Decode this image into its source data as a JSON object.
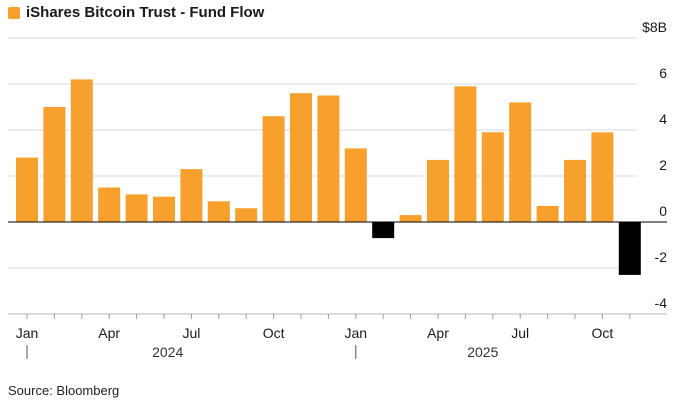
{
  "legend": {
    "label": "iShares Bitcoin Trust - Fund Flow",
    "color": "#F7A02E"
  },
  "source": "Source: Bloomberg",
  "chart_data": {
    "type": "bar",
    "title": "iShares Bitcoin Trust - Fund Flow",
    "ylabel": "$8B",
    "ylim": [
      -4,
      8
    ],
    "yticks": [
      {
        "value": 8,
        "label": "$8B"
      },
      {
        "value": 6,
        "label": "6"
      },
      {
        "value": 4,
        "label": "4"
      },
      {
        "value": 2,
        "label": "2"
      },
      {
        "value": 0,
        "label": "0"
      },
      {
        "value": -2,
        "label": "-2"
      },
      {
        "value": -4,
        "label": "-4"
      }
    ],
    "categories": [
      "Jan 2024",
      "Feb 2024",
      "Mar 2024",
      "Apr 2024",
      "May 2024",
      "Jun 2024",
      "Jul 2024",
      "Aug 2024",
      "Sep 2024",
      "Oct 2024",
      "Nov 2024",
      "Dec 2024",
      "Jan 2025",
      "Feb 2025",
      "Mar 2025",
      "Apr 2025",
      "May 2025",
      "Jun 2025",
      "Jul 2025",
      "Aug 2025",
      "Sep 2025",
      "Oct 2025",
      "Nov 2025"
    ],
    "values": [
      2.8,
      5.0,
      6.2,
      1.5,
      1.2,
      1.1,
      2.3,
      0.9,
      0.6,
      4.6,
      5.6,
      5.5,
      3.2,
      -0.7,
      0.3,
      2.7,
      5.9,
      3.9,
      5.2,
      0.7,
      2.7,
      3.9,
      -2.3
    ],
    "bar_colors": {
      "positive": "#F7A02E",
      "negative": "#000000"
    },
    "xtick_labels": [
      {
        "index": 0,
        "label": "Jan"
      },
      {
        "index": 3,
        "label": "Apr"
      },
      {
        "index": 6,
        "label": "Jul"
      },
      {
        "index": 9,
        "label": "Oct"
      },
      {
        "index": 12,
        "label": "Jan"
      },
      {
        "index": 15,
        "label": "Apr"
      },
      {
        "index": 18,
        "label": "Jul"
      },
      {
        "index": 21,
        "label": "Oct"
      }
    ],
    "year_labels": [
      {
        "start_index": 0,
        "label": "2024"
      },
      {
        "start_index": 12,
        "label": "2025"
      }
    ],
    "grid": true
  }
}
